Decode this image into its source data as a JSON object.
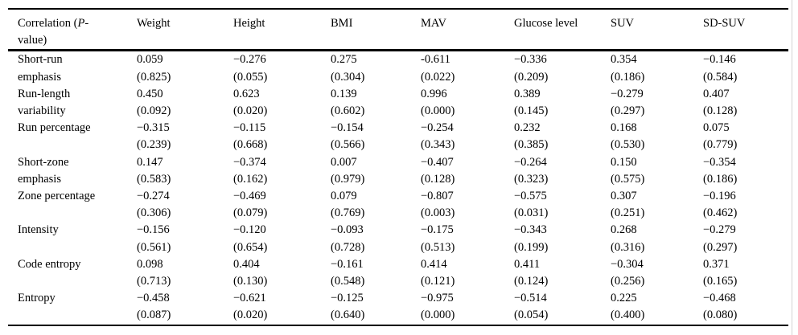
{
  "colors": {
    "text": "#000000",
    "rule": "#000000",
    "page_edge_line": "#d4d4d4",
    "background": "#ffffff"
  },
  "table": {
    "header": {
      "col0": {
        "prefix": "Correlation (",
        "italic": "P",
        "suffix": "-value)"
      },
      "columns": [
        "Weight",
        "Height",
        "BMI",
        "MAV",
        "Glucose level",
        "SUV",
        "SD-SUV"
      ]
    },
    "rows": [
      {
        "label": "Short-run emphasis",
        "cells": [
          {
            "r": "0.059",
            "p": "(0.825)"
          },
          {
            "r": "−0.276",
            "p": "(0.055)"
          },
          {
            "r": "0.275",
            "p": "(0.304)"
          },
          {
            "r": "-0.611",
            "p": "(0.022)"
          },
          {
            "r": "−0.336",
            "p": "(0.209)"
          },
          {
            "r": "0.354",
            "p": "(0.186)"
          },
          {
            "r": "−0.146",
            "p": "(0.584)"
          }
        ]
      },
      {
        "label": "Run-length variability",
        "cells": [
          {
            "r": "0.450",
            "p": "(0.092)"
          },
          {
            "r": "0.623",
            "p": "(0.020)"
          },
          {
            "r": "0.139",
            "p": "(0.602)"
          },
          {
            "r": "0.996",
            "p": "(0.000)"
          },
          {
            "r": "0.389",
            "p": "(0.145)"
          },
          {
            "r": "−0.279",
            "p": "(0.297)"
          },
          {
            "r": "0.407",
            "p": "(0.128)"
          }
        ]
      },
      {
        "label": "Run percentage",
        "cells": [
          {
            "r": "−0.315",
            "p": "(0.239)"
          },
          {
            "r": "−0.115",
            "p": "(0.668)"
          },
          {
            "r": "−0.154",
            "p": "(0.566)"
          },
          {
            "r": "−0.254",
            "p": "(0.343)"
          },
          {
            "r": "0.232",
            "p": "(0.385)"
          },
          {
            "r": "0.168",
            "p": "(0.530)"
          },
          {
            "r": "0.075",
            "p": "(0.779)"
          }
        ]
      },
      {
        "label": "Short-zone emphasis",
        "cells": [
          {
            "r": "0.147",
            "p": "(0.583)"
          },
          {
            "r": "−0.374",
            "p": "(0.162)"
          },
          {
            "r": "0.007",
            "p": "(0.979)"
          },
          {
            "r": "−0.407",
            "p": "(0.128)"
          },
          {
            "r": "−0.264",
            "p": "(0.323)"
          },
          {
            "r": "0.150",
            "p": "(0.575)"
          },
          {
            "r": "−0.354",
            "p": "(0.186)"
          }
        ]
      },
      {
        "label": "Zone percentage",
        "cells": [
          {
            "r": "−0.274",
            "p": "(0.306)"
          },
          {
            "r": "−0.469",
            "p": "(0.079)"
          },
          {
            "r": "0.079",
            "p": "(0.769)"
          },
          {
            "r": "−0.807",
            "p": "(0.003)"
          },
          {
            "r": "−0.575",
            "p": "(0.031)"
          },
          {
            "r": "0.307",
            "p": "(0.251)"
          },
          {
            "r": "−0.196",
            "p": "(0.462)"
          }
        ]
      },
      {
        "label": "Intensity",
        "cells": [
          {
            "r": "−0.156",
            "p": "(0.561)"
          },
          {
            "r": "−0.120",
            "p": "(0.654)"
          },
          {
            "r": "−0.093",
            "p": "(0.728)"
          },
          {
            "r": "−0.175",
            "p": "(0.513)"
          },
          {
            "r": "−0.343",
            "p": "(0.199)"
          },
          {
            "r": "0.268",
            "p": "(0.316)"
          },
          {
            "r": "−0.279",
            "p": "(0.297)"
          }
        ]
      },
      {
        "label": "Code entropy",
        "cells": [
          {
            "r": "0.098",
            "p": "(0.713)"
          },
          {
            "r": "0.404",
            "p": "(0.130)"
          },
          {
            "r": "−0.161",
            "p": "(0.548)"
          },
          {
            "r": "0.414",
            "p": "(0.121)"
          },
          {
            "r": "0.411",
            "p": "(0.124)"
          },
          {
            "r": "−0.304",
            "p": "(0.256)"
          },
          {
            "r": "0.371",
            "p": "(0.165)"
          }
        ]
      },
      {
        "label": "Entropy",
        "cells": [
          {
            "r": "−0.458",
            "p": "(0.087)"
          },
          {
            "r": "−0.621",
            "p": "(0.020)"
          },
          {
            "r": "−0.125",
            "p": "(0.640)"
          },
          {
            "r": "−0.975",
            "p": "(0.000)"
          },
          {
            "r": "−0.514",
            "p": "(0.054)"
          },
          {
            "r": "0.225",
            "p": "(0.400)"
          },
          {
            "r": "−0.468",
            "p": "(0.080)"
          }
        ]
      }
    ]
  }
}
